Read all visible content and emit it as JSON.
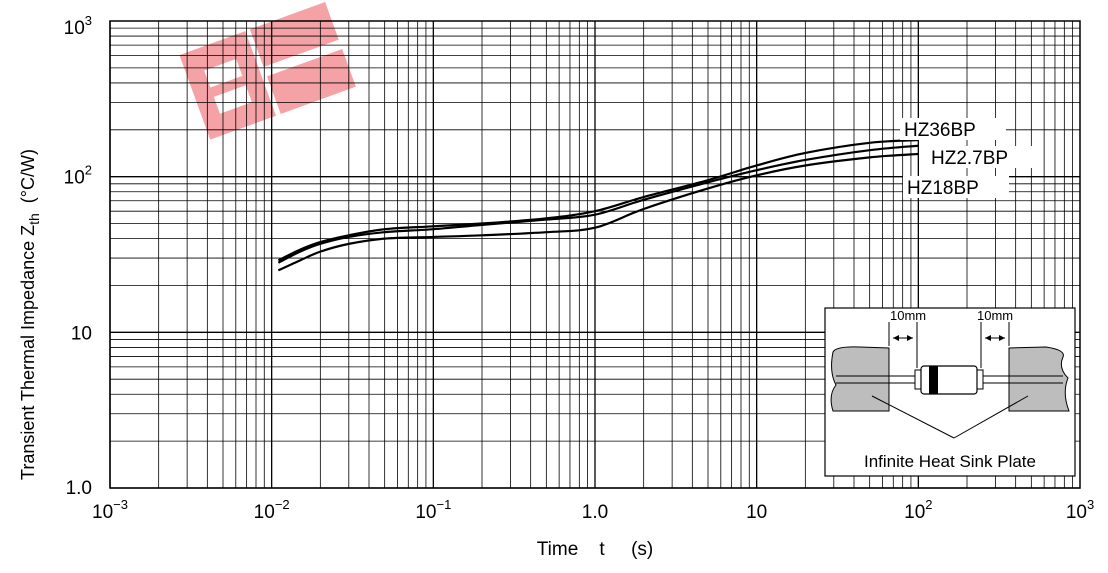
{
  "chart_data": {
    "type": "line",
    "title": "",
    "xlabel": "Time    t     (s)",
    "ylabel": {
      "main": "Transient Thermal Impedance Z",
      "sub": "th",
      "unit": "(°C/W)"
    },
    "x_scale": "log",
    "y_scale": "log",
    "xlim": [
      0.001,
      1000
    ],
    "ylim": [
      1,
      1000
    ],
    "grid": true,
    "x_ticks": [
      {
        "base": "10",
        "exp": "−3",
        "value": 0.001
      },
      {
        "base": "10",
        "exp": "−2",
        "value": 0.01
      },
      {
        "base": "10",
        "exp": "−1",
        "value": 0.1
      },
      {
        "base": "1.0",
        "exp": "",
        "value": 1
      },
      {
        "base": "10",
        "exp": "",
        "value": 10
      },
      {
        "base": "10",
        "exp": "2",
        "value": 100
      },
      {
        "base": "10",
        "exp": "3",
        "value": 1000
      }
    ],
    "y_ticks": [
      {
        "base": "1.0",
        "exp": "",
        "value": 1
      },
      {
        "base": "10",
        "exp": "",
        "value": 10
      },
      {
        "base": "10",
        "exp": "2",
        "value": 100
      },
      {
        "base": "10",
        "exp": "3",
        "value": 1000
      }
    ],
    "series": [
      {
        "name": "HZ36BP",
        "x": [
          0.011,
          0.015,
          0.02,
          0.03,
          0.05,
          0.1,
          0.2,
          0.5,
          1.0,
          2.0,
          5.0,
          10,
          20,
          50,
          100
        ],
        "y": [
          29,
          34,
          38,
          42,
          46,
          48,
          50,
          54,
          60,
          74,
          95,
          118,
          142,
          165,
          172
        ]
      },
      {
        "name": "HZ2.7BP",
        "x": [
          0.011,
          0.015,
          0.02,
          0.03,
          0.05,
          0.1,
          0.2,
          0.5,
          1.0,
          2.0,
          5.0,
          10,
          20,
          50,
          100
        ],
        "y": [
          28,
          33,
          37,
          41,
          44,
          46,
          49,
          53,
          57,
          71,
          92,
          110,
          128,
          148,
          158
        ]
      },
      {
        "name": "HZ18BP",
        "x": [
          0.011,
          0.015,
          0.02,
          0.03,
          0.05,
          0.1,
          0.2,
          0.5,
          1.0,
          2.0,
          5.0,
          10,
          20,
          50,
          100
        ],
        "y": [
          25,
          29,
          33,
          37,
          40,
          41,
          42,
          44,
          47,
          62,
          84,
          102,
          118,
          133,
          140
        ]
      }
    ],
    "inset": {
      "dim_left": "10mm",
      "dim_right": "10mm",
      "caption": "Infinite Heat Sink Plate"
    }
  },
  "watermark": {
    "color": "#e8333a",
    "opacity": 0.45
  },
  "colors": {
    "line": "#000000",
    "inset_plate": "#bdbdbd"
  }
}
